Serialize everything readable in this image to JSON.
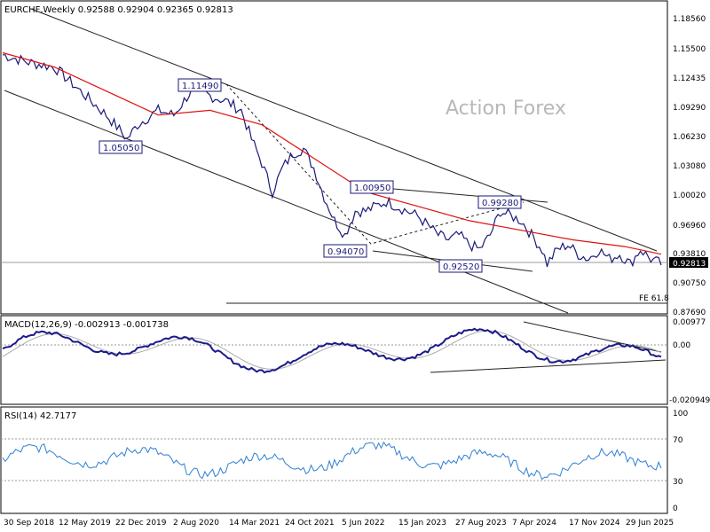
{
  "chart_data": {
    "type": "line",
    "main": {
      "header": "EURCHF,Weekly  0.92588 0.92904 0.92365 0.92813",
      "watermark": "Action Forex",
      "price_ticks": [
        "1.18560",
        "1.15500",
        "1.12435",
        "1.09290",
        "1.06230",
        "1.03080",
        "1.00020",
        "0.96960",
        "0.93810",
        "0.90750",
        "0.87690"
      ],
      "current_price": "0.92813",
      "fib_label": "FE 61.8",
      "annotations": [
        {
          "text": "1.11490",
          "date_index": 71,
          "price": 1.1149
        },
        {
          "text": "1.05050",
          "date_index": 38,
          "price": 1.0505
        },
        {
          "text": "1.00950",
          "date_index": 210,
          "price": 1.0095
        },
        {
          "text": "0.99280",
          "date_index": 302,
          "price": 0.9928
        },
        {
          "text": "0.94070",
          "date_index": 210,
          "price": 0.9407
        },
        {
          "text": "0.92520",
          "date_index": 267,
          "price": 0.9252
        }
      ],
      "price_series": [
        [
          0,
          1.148
        ],
        [
          10,
          1.14
        ],
        [
          20,
          1.135
        ],
        [
          30,
          1.11
        ],
        [
          40,
          1.085
        ],
        [
          45,
          1.07
        ],
        [
          48,
          1.06
        ],
        [
          52,
          1.075
        ],
        [
          60,
          1.09
        ],
        [
          66,
          1.085
        ],
        [
          70,
          1.1
        ],
        [
          74,
          1.115
        ],
        [
          80,
          1.105
        ],
        [
          86,
          1.1
        ],
        [
          92,
          1.09
        ],
        [
          96,
          1.06
        ],
        [
          100,
          1.035
        ],
        [
          104,
          1.005
        ],
        [
          108,
          1.03
        ],
        [
          112,
          1.045
        ],
        [
          116,
          1.05
        ],
        [
          120,
          1.03
        ],
        [
          124,
          1.0
        ],
        [
          128,
          0.975
        ],
        [
          132,
          0.96
        ],
        [
          136,
          0.985
        ],
        [
          140,
          0.985
        ],
        [
          144,
          0.99
        ],
        [
          148,
          0.995
        ],
        [
          152,
          0.99
        ],
        [
          156,
          0.985
        ],
        [
          160,
          0.98
        ],
        [
          164,
          0.97
        ],
        [
          168,
          0.96
        ],
        [
          172,
          0.955
        ],
        [
          176,
          0.96
        ],
        [
          180,
          0.95
        ],
        [
          184,
          0.945
        ],
        [
          188,
          0.96
        ],
        [
          192,
          0.985
        ],
        [
          196,
          0.98
        ],
        [
          200,
          0.975
        ],
        [
          204,
          0.96
        ],
        [
          208,
          0.945
        ],
        [
          210,
          0.93
        ],
        [
          214,
          0.945
        ],
        [
          218,
          0.95
        ],
        [
          222,
          0.94
        ],
        [
          226,
          0.935
        ],
        [
          230,
          0.945
        ],
        [
          234,
          0.935
        ],
        [
          238,
          0.94
        ],
        [
          242,
          0.93
        ],
        [
          246,
          0.945
        ],
        [
          250,
          0.935
        ],
        [
          254,
          0.93
        ]
      ],
      "ma_series": [
        [
          0,
          1.15
        ],
        [
          20,
          1.135
        ],
        [
          40,
          1.11
        ],
        [
          60,
          1.085
        ],
        [
          80,
          1.09
        ],
        [
          100,
          1.075
        ],
        [
          120,
          1.04
        ],
        [
          140,
          1.005
        ],
        [
          160,
          0.99
        ],
        [
          180,
          0.975
        ],
        [
          200,
          0.965
        ],
        [
          220,
          0.955
        ],
        [
          240,
          0.948
        ],
        [
          254,
          0.94
        ]
      ]
    },
    "macd": {
      "header": "MACD(12,26,9) -0.002913 -0.001738",
      "ticks": [
        "0.00977",
        "0.00",
        "-0.020949"
      ]
    },
    "rsi": {
      "header": "RSI(14) 42.7177",
      "ticks": [
        "100",
        "70",
        "30",
        "0"
      ]
    },
    "x_labels": [
      "30 Sep 2018",
      "12 May 2019",
      "22 Dec 2019",
      "2 Aug 2020",
      "14 Mar 2021",
      "24 Oct 2021",
      "5 Jun 2022",
      "15 Jan 2023",
      "27 Aug 2023",
      "7 Apr 2024",
      "17 Nov 2024",
      "29 Jun 2025"
    ]
  },
  "colors": {
    "price": "#1a1a7a",
    "ma": "#e01010",
    "macd": "#1a1a8a",
    "signal": "#aaaaaa",
    "rsi": "#2f7fd4",
    "trend": "#222222"
  }
}
